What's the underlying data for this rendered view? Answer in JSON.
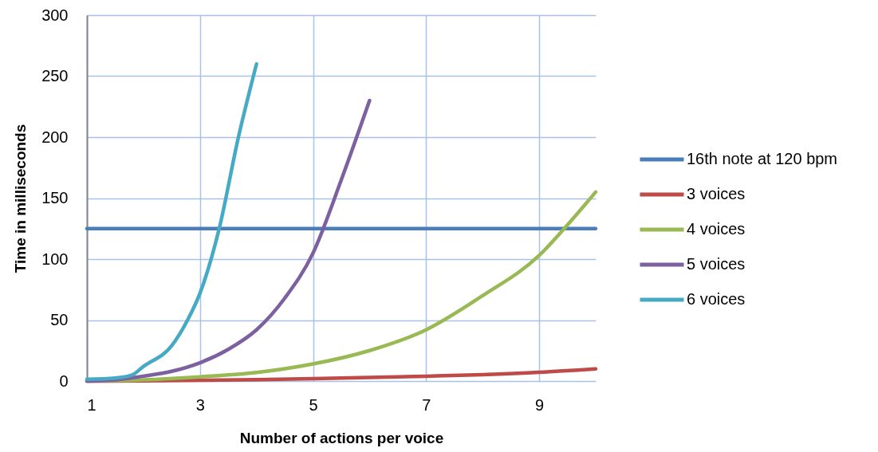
{
  "chart_data": {
    "type": "line",
    "xlabel": "Number of actions per voice",
    "ylabel": "Time in milliseconds",
    "xlim": [
      1,
      10
    ],
    "xticks": [
      1,
      3,
      5,
      7,
      9
    ],
    "ylim": [
      0,
      300
    ],
    "yticks": [
      0,
      50,
      100,
      150,
      200,
      250,
      300
    ],
    "grid": true,
    "legend": "right",
    "series": [
      {
        "name": "16th note at 120 bpm",
        "color": "#4a7ebb",
        "x": [
          1,
          10
        ],
        "values": [
          125,
          125
        ]
      },
      {
        "name": "3 voices",
        "color": "#be4b48",
        "x": [
          1,
          2,
          3,
          4,
          5,
          6,
          7,
          8,
          9,
          10
        ],
        "values": [
          0,
          0.2,
          0.6,
          1.2,
          2,
          2.9,
          4,
          5.3,
          7.2,
          10
        ]
      },
      {
        "name": "4 voices",
        "color": "#98b954",
        "x": [
          1,
          2,
          3,
          4,
          5,
          6,
          7,
          8,
          9,
          9.5,
          10
        ],
        "values": [
          0,
          1,
          3.5,
          7,
          14,
          25,
          42,
          70,
          103,
          128,
          155
        ]
      },
      {
        "name": "5 voices",
        "color": "#7d60a0",
        "x": [
          1,
          1.5,
          2,
          2.5,
          3,
          3.5,
          4,
          4.5,
          5,
          5.5,
          6
        ],
        "values": [
          0,
          1,
          4,
          8,
          15,
          26,
          42,
          68,
          105,
          165,
          230
        ]
      },
      {
        "name": "6 voices",
        "color": "#46aac5",
        "x": [
          1,
          1.5,
          1.8,
          2,
          2.5,
          2.78,
          3,
          3.34,
          3.68,
          4
        ],
        "values": [
          1.5,
          2.5,
          5,
          12,
          29,
          50,
          72,
          125,
          200,
          260
        ]
      }
    ]
  }
}
